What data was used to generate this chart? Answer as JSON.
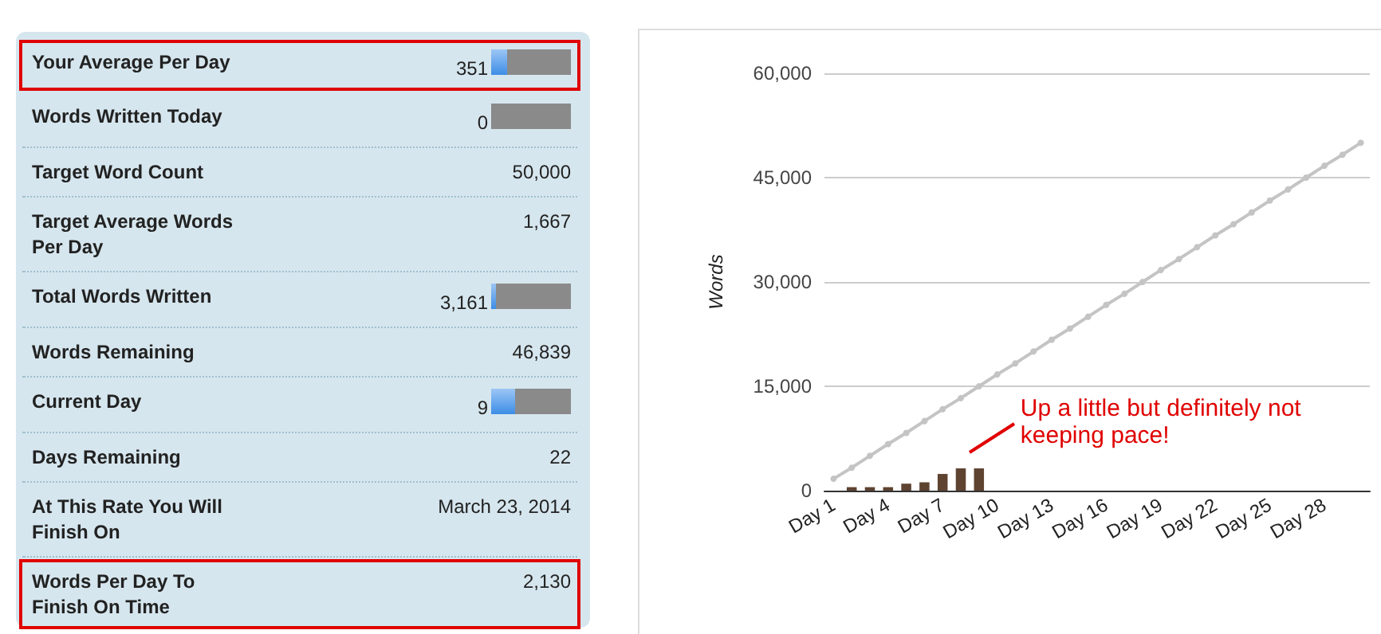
{
  "chart_data": [
    {
      "type": "other",
      "annotations": [
        "Your Average Per Day",
        "351",
        "Words Written Today",
        "0",
        "Target Word Count",
        "50,000",
        "Target Average Words Per Day",
        "1,667",
        "Total Words Written",
        "3,161",
        "Words Remaining",
        "46,839",
        "Current Day",
        "9",
        "Days Remaining",
        "22",
        "At This Rate You Will Finish On",
        "March 23, 2014",
        "Words Per Day To Finish On Time",
        "2,130"
      ]
    },
    {
      "type": "bar",
      "categories": [
        "Day 1",
        null,
        null,
        "Day 4",
        null,
        null,
        "Day 7",
        null,
        null,
        "Day 10",
        null,
        null,
        "Day 13",
        null,
        null,
        "Day 16",
        null,
        null,
        "Day 19",
        null,
        null,
        "Day 22",
        null,
        null,
        "Day 25",
        null,
        null,
        "Day 28",
        null,
        null
      ],
      "series": [
        {
          "type": "bar",
          "color": "#5e4331",
          "values": [
            0,
            500,
            500,
            500,
            1000,
            1200,
            2400,
            3200,
            3200,
            null,
            null,
            null,
            null,
            null,
            null,
            null,
            null,
            null,
            null,
            null,
            null,
            null,
            null,
            null,
            null,
            null,
            null,
            null,
            null,
            null
          ]
        },
        {
          "type": "line",
          "color": "#c4c4c4",
          "values": [
            1700,
            3300,
            5000,
            6700,
            8300,
            10000,
            11700,
            13300,
            15000,
            16700,
            18300,
            20000,
            21700,
            23300,
            25000,
            26700,
            28300,
            30000,
            31700,
            33300,
            35000,
            36700,
            38300,
            40000,
            41700,
            43300,
            45000,
            46700,
            48300,
            50000
          ]
        }
      ],
      "ylabel": "Words",
      "ylim": [
        0,
        60000
      ],
      "yticks": [
        {
          "value": 0,
          "label": "0"
        },
        {
          "value": 15000,
          "label": "15,000"
        },
        {
          "value": 30000,
          "label": "30,000"
        },
        {
          "value": 45000,
          "label": "45,000"
        },
        {
          "value": 60000,
          "label": "60,000"
        }
      ],
      "grid": "y",
      "marker": "circle",
      "annotations": [
        "Up a little but definitely not keeping pace!"
      ]
    }
  ]
}
